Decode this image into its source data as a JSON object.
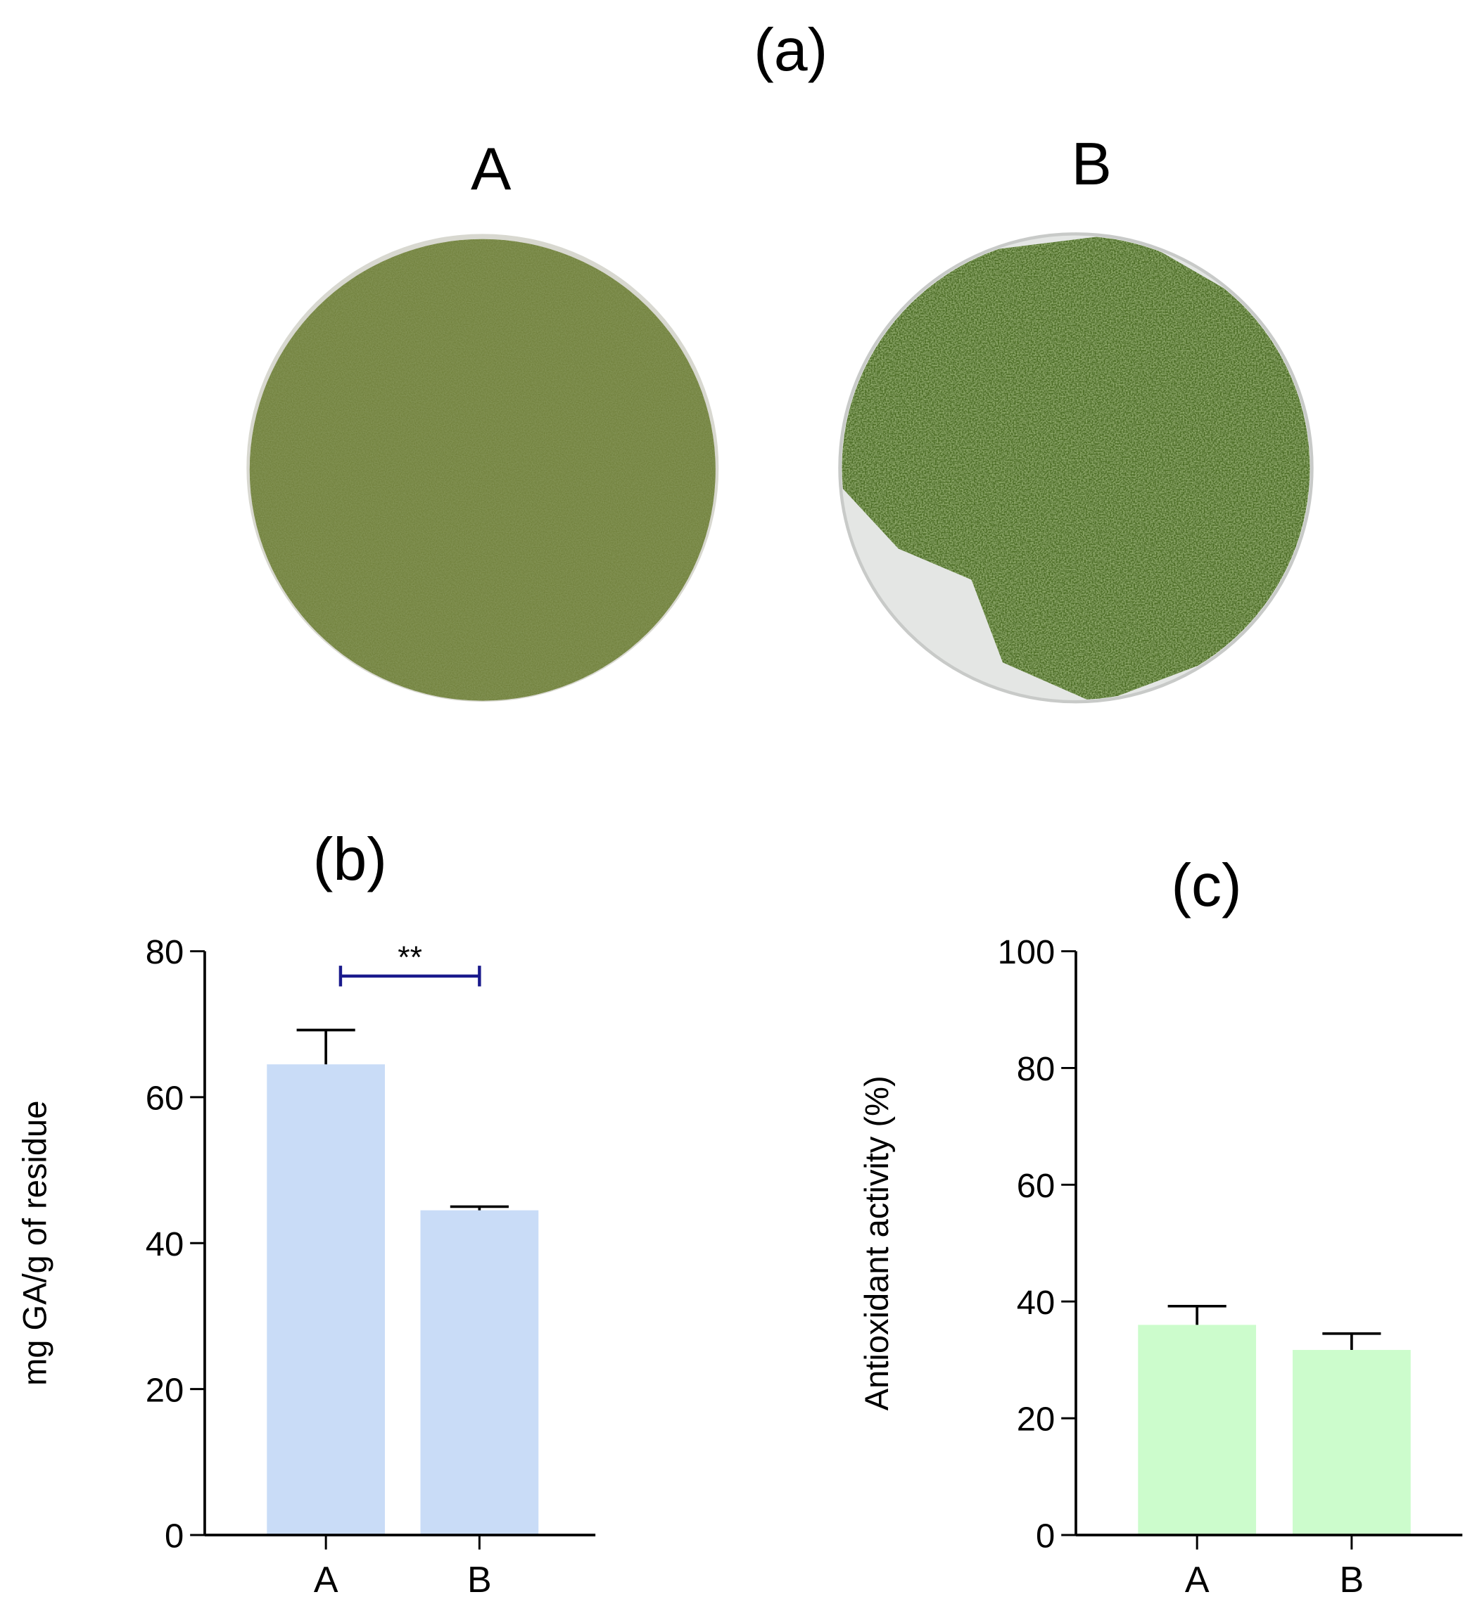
{
  "figure_label": "(a)",
  "photos": [
    {
      "label": "A"
    },
    {
      "label": "B"
    }
  ],
  "chart_data": [
    {
      "type": "bar",
      "title": "(b)",
      "y_label": "mg GA/g of residue",
      "categories": [
        "A",
        "B"
      ],
      "values": [
        64.5,
        44.5
      ],
      "errors": [
        4.7,
        0.5
      ],
      "color": "#c9dcf7",
      "ylim": [
        0,
        80
      ],
      "yticks": [
        0,
        20,
        40,
        60,
        80
      ],
      "annotation": "**",
      "annotation_color": "#1a1a8c"
    },
    {
      "type": "bar",
      "title": "(c)",
      "y_label": "Antioxidant activity (%)",
      "categories": [
        "A",
        "B"
      ],
      "values": [
        36,
        31.7
      ],
      "errors": [
        3.2,
        2.8
      ],
      "color": "#ccfccc",
      "ylim": [
        0,
        100
      ],
      "yticks": [
        0,
        20,
        40,
        60,
        80,
        100
      ]
    }
  ]
}
